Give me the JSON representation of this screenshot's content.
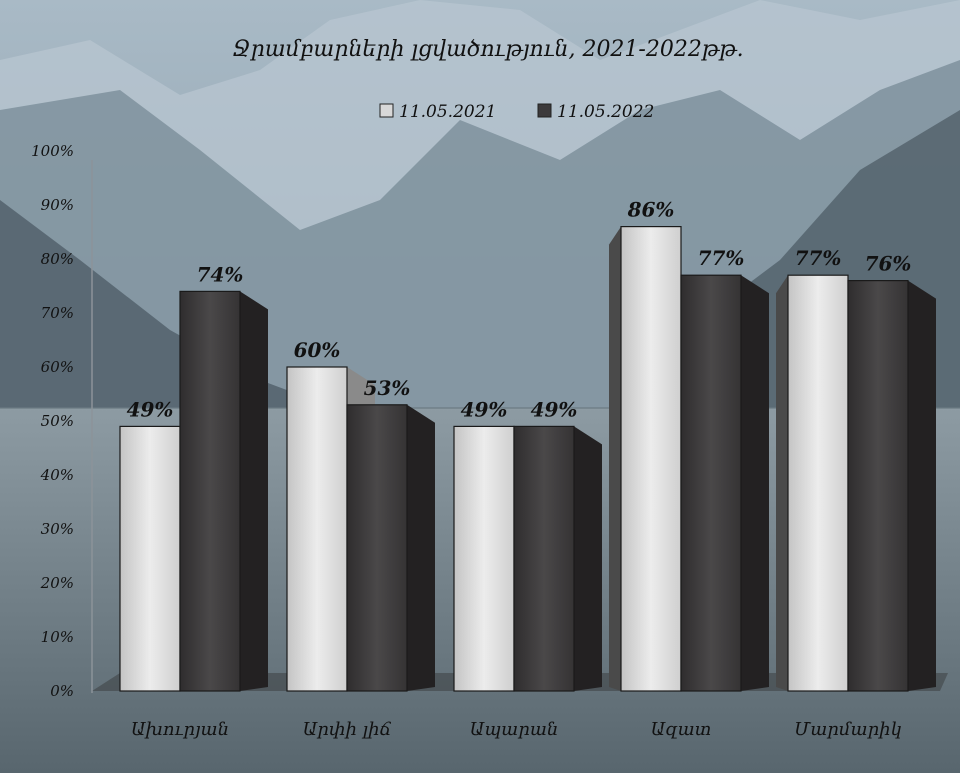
{
  "chart_data": {
    "type": "bar",
    "title": "Ջրամբարների լցվածություն,  2021-2022թթ.",
    "categories": [
      "Ախուրյան",
      "Արփի լիճ",
      "Ապարան",
      "Ազատ",
      "Մարմարիկ"
    ],
    "series": [
      {
        "name": "11.05.2021",
        "values": [
          49,
          60,
          49,
          86,
          77
        ],
        "labels": [
          "49%",
          "60%",
          "49%",
          "86%",
          "77%"
        ]
      },
      {
        "name": "11.05.2022",
        "values": [
          74,
          53,
          49,
          77,
          76
        ],
        "labels": [
          "74%",
          "53%",
          "49%",
          "77%",
          "76%"
        ]
      }
    ],
    "yticks": [
      "0%",
      "10%",
      "20%",
      "30%",
      "40%",
      "50%",
      "60%",
      "70%",
      "80%",
      "90%",
      "100%"
    ],
    "ylim": [
      0,
      100
    ],
    "legend_position": "top-center",
    "grid": false,
    "colors": {
      "series_2021": "#d8d8d8",
      "series_2022": "#3c3a3b",
      "sky_top": "#9fb2c0",
      "mountain": "#6f8291",
      "water": "#7f8e97"
    }
  }
}
